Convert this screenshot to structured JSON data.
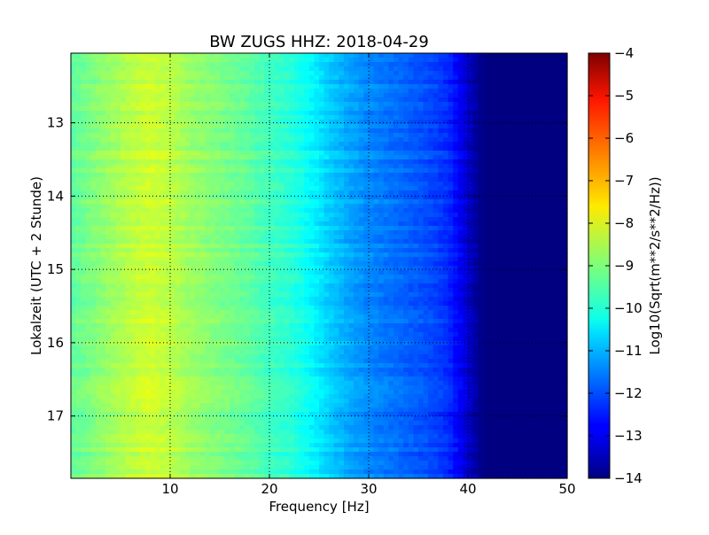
{
  "chart_data": {
    "type": "heatmap",
    "title": "BW ZUGS HHZ: 2018-04-29",
    "xlabel": "Frequency [Hz]",
    "ylabel": "Lokalzeit (UTC + 2 Stunde)",
    "xlim": [
      0,
      50
    ],
    "ylim": [
      17.85,
      12.05
    ],
    "xticks": [
      10,
      20,
      30,
      40,
      50
    ],
    "xtick_labels": [
      "10",
      "20",
      "30",
      "40",
      "50"
    ],
    "yticks": [
      13,
      14,
      15,
      16,
      17
    ],
    "ytick_labels": [
      "13",
      "14",
      "15",
      "16",
      "17"
    ],
    "grid": true,
    "colorbar": {
      "label": "Log10(Sqrt(m**2/s**2/Hz))",
      "range": [
        -14,
        -4
      ],
      "ticks": [
        -4,
        -5,
        -6,
        -7,
        -8,
        -9,
        -10,
        -11,
        -12,
        -13,
        -14
      ],
      "tick_labels": [
        "−4",
        "−5",
        "−6",
        "−7",
        "−8",
        "−9",
        "−10",
        "−11",
        "−12",
        "−13",
        "−14"
      ],
      "colormap": "jet"
    },
    "frequency_profile": {
      "frequency_hz": [
        0,
        2,
        4,
        6,
        8,
        10,
        12,
        14,
        16,
        18,
        20,
        22,
        24,
        26,
        28,
        30,
        32,
        34,
        36,
        38,
        40,
        41,
        42,
        44,
        46,
        48,
        50
      ],
      "level": [
        -9.3,
        -9.0,
        -8.7,
        -8.4,
        -8.2,
        -8.4,
        -8.7,
        -8.9,
        -9.1,
        -9.3,
        -9.6,
        -9.8,
        -10.2,
        -10.7,
        -11.1,
        -11.4,
        -11.6,
        -11.8,
        -12.0,
        -12.3,
        -13.2,
        -13.8,
        -14.0,
        -14.0,
        -14.0,
        -14.0,
        -14.0
      ]
    }
  }
}
